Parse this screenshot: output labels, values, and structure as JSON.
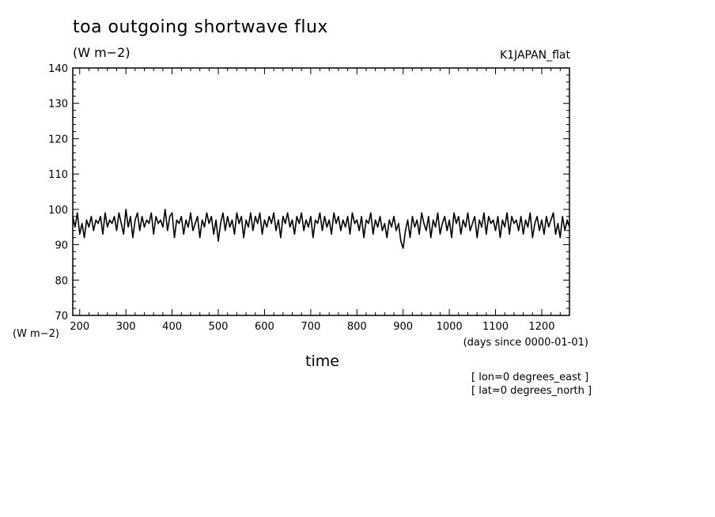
{
  "chart_data": {
    "type": "line",
    "title": "toa outgoing shortwave flux",
    "units": "(W m−2)",
    "run_label": "K1JAPAN_flat",
    "xlabel": "time",
    "x_units": "(days since 0000-01-01)",
    "y_units": "(W m−2)",
    "xlim": [
      185,
      1260
    ],
    "ylim": [
      70,
      140
    ],
    "x_ticks": [
      200,
      300,
      400,
      500,
      600,
      700,
      800,
      900,
      1000,
      1100,
      1200
    ],
    "y_ticks": [
      70,
      80,
      90,
      100,
      110,
      120,
      130,
      140
    ],
    "notes": [
      "[ lon=0 degrees_east ]",
      "[ lat=0 degrees_north ]"
    ],
    "series": [
      {
        "color": "#000000",
        "x": [
          185,
          190,
          195,
          200,
          205,
          210,
          215,
          220,
          225,
          230,
          235,
          240,
          245,
          250,
          255,
          260,
          265,
          270,
          275,
          280,
          285,
          290,
          295,
          300,
          305,
          310,
          315,
          320,
          325,
          330,
          335,
          340,
          345,
          350,
          355,
          360,
          365,
          370,
          375,
          380,
          385,
          390,
          395,
          400,
          405,
          410,
          415,
          420,
          425,
          430,
          435,
          440,
          445,
          450,
          455,
          460,
          465,
          470,
          475,
          480,
          485,
          490,
          495,
          500,
          505,
          510,
          515,
          520,
          525,
          530,
          535,
          540,
          545,
          550,
          555,
          560,
          565,
          570,
          575,
          580,
          585,
          590,
          595,
          600,
          605,
          610,
          615,
          620,
          625,
          630,
          635,
          640,
          645,
          650,
          655,
          660,
          665,
          670,
          675,
          680,
          685,
          690,
          695,
          700,
          705,
          710,
          715,
          720,
          725,
          730,
          735,
          740,
          745,
          750,
          755,
          760,
          765,
          770,
          775,
          780,
          785,
          790,
          795,
          800,
          805,
          810,
          815,
          820,
          825,
          830,
          835,
          840,
          845,
          850,
          855,
          860,
          865,
          870,
          875,
          880,
          885,
          890,
          895,
          900,
          905,
          910,
          915,
          920,
          925,
          930,
          935,
          940,
          945,
          950,
          955,
          960,
          965,
          970,
          975,
          980,
          985,
          990,
          995,
          1000,
          1005,
          1010,
          1015,
          1020,
          1025,
          1030,
          1035,
          1040,
          1045,
          1050,
          1055,
          1060,
          1065,
          1070,
          1075,
          1080,
          1085,
          1090,
          1095,
          1100,
          1105,
          1110,
          1115,
          1120,
          1125,
          1130,
          1135,
          1140,
          1145,
          1150,
          1155,
          1160,
          1165,
          1170,
          1175,
          1180,
          1185,
          1190,
          1195,
          1200,
          1205,
          1210,
          1215,
          1220,
          1225,
          1230,
          1235,
          1240,
          1245,
          1250,
          1255,
          1260
        ],
        "y": [
          98,
          95,
          99,
          93,
          96,
          92,
          97,
          95,
          98,
          94,
          97,
          96,
          98,
          93,
          99,
          95,
          97,
          96,
          98,
          94,
          99,
          96,
          93,
          100,
          95,
          98,
          92,
          97,
          99,
          94,
          98,
          95,
          97,
          96,
          99,
          93,
          98,
          96,
          97,
          95,
          100,
          94,
          98,
          99,
          92,
          97,
          96,
          98,
          93,
          97,
          95,
          99,
          94,
          96,
          98,
          92,
          97,
          95,
          99,
          96,
          98,
          93,
          97,
          91,
          96,
          99,
          94,
          98,
          95,
          97,
          93,
          99,
          96,
          98,
          92,
          97,
          95,
          99,
          94,
          98,
          96,
          99,
          93,
          97,
          95,
          98,
          96,
          99,
          94,
          97,
          92,
          98,
          96,
          99,
          95,
          97,
          93,
          98,
          96,
          99,
          94,
          97,
          95,
          98,
          92,
          97,
          96,
          99,
          94,
          98,
          95,
          97,
          93,
          99,
          96,
          98,
          94,
          97,
          95,
          98,
          93,
          99,
          96,
          97,
          94,
          98,
          92,
          97,
          96,
          99,
          93,
          97,
          95,
          98,
          94,
          96,
          92,
          97,
          95,
          98,
          94,
          96,
          91,
          89,
          94,
          97,
          92,
          98,
          95,
          97,
          93,
          99,
          96,
          94,
          98,
          92,
          97,
          95,
          99,
          93,
          96,
          98,
          94,
          97,
          92,
          99,
          96,
          98,
          93,
          97,
          95,
          99,
          94,
          96,
          98,
          92,
          97,
          95,
          99,
          93,
          98,
          96,
          97,
          94,
          98,
          92,
          97,
          95,
          99,
          93,
          98,
          96,
          97,
          94,
          98,
          93,
          97,
          95,
          99,
          92,
          96,
          98,
          94,
          97,
          93,
          98,
          95,
          97,
          99,
          93,
          96,
          92,
          98,
          94,
          97,
          95
        ]
      }
    ]
  }
}
